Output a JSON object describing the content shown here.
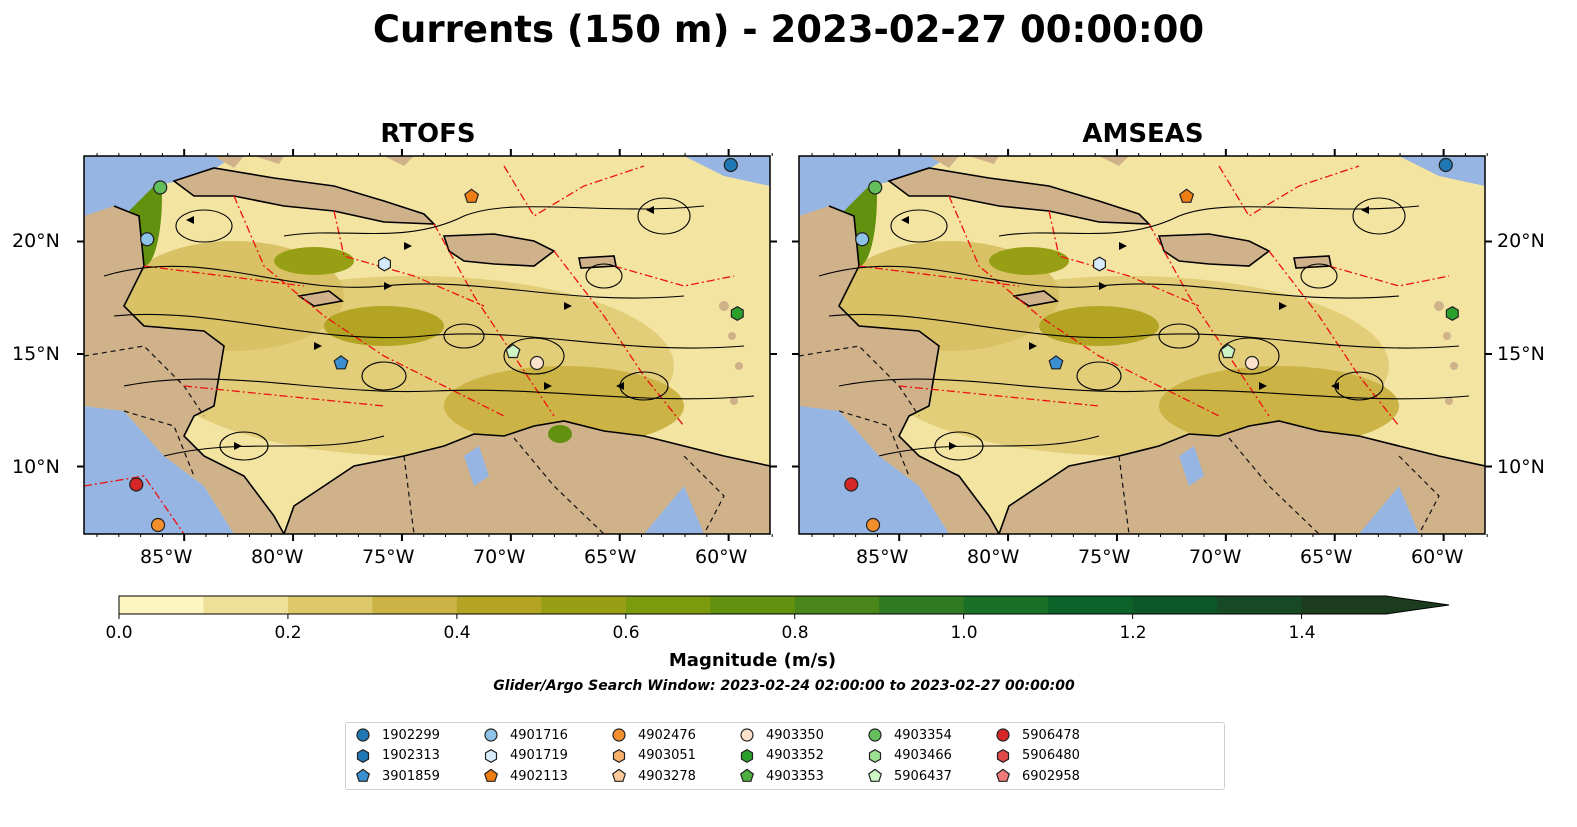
{
  "title": "Currents (150 m) - 2023-02-27 00:00:00",
  "panels": [
    {
      "title": "RTOFS"
    },
    {
      "title": "AMSEAS"
    }
  ],
  "axes": {
    "lon_labels": [
      "85°W",
      "80°W",
      "75°W",
      "70°W",
      "65°W",
      "60°W"
    ],
    "lat_labels": [
      "20°N",
      "15°N",
      "10°N"
    ],
    "lon_range": [
      -89.6,
      -58.1
    ],
    "lat_range": [
      7.0,
      23.8
    ]
  },
  "colorbar": {
    "label": "Magnitude (m/s)",
    "ticks": [
      "0.0",
      "0.2",
      "0.4",
      "0.6",
      "0.8",
      "1.0",
      "1.2",
      "1.4"
    ],
    "range": [
      0.0,
      1.5
    ],
    "extend": "max",
    "colors": [
      "#fef6c0",
      "#efe098",
      "#ddc86a",
      "#cbb346",
      "#b3a523",
      "#97a015",
      "#7c9a0e",
      "#62910f",
      "#4a8619",
      "#2f7a22",
      "#197026",
      "#0b6329",
      "#0c5628",
      "#174a24",
      "#1b3d1e"
    ]
  },
  "search_window": "Glider/Argo Search Window: 2023-02-24 02:00:00 to 2023-02-27 00:00:00",
  "legend": [
    {
      "id": "1902299",
      "marker": "circle",
      "color": "#1f77b4"
    },
    {
      "id": "1902313",
      "marker": "hexagon",
      "color": "#1f77b4"
    },
    {
      "id": "3901859",
      "marker": "pentagon",
      "color": "#3b8fd0"
    },
    {
      "id": "4901716",
      "marker": "circle",
      "color": "#8ec3e8"
    },
    {
      "id": "4901719",
      "marker": "hexagon",
      "color": "#d6ecfa"
    },
    {
      "id": "4902113",
      "marker": "pentagon",
      "color": "#ee7d14"
    },
    {
      "id": "4902476",
      "marker": "circle",
      "color": "#f28e2c"
    },
    {
      "id": "4903051",
      "marker": "hexagon",
      "color": "#f9b26b"
    },
    {
      "id": "4903278",
      "marker": "pentagon",
      "color": "#fbc99a"
    },
    {
      "id": "4903350",
      "marker": "circle",
      "color": "#fde2cc"
    },
    {
      "id": "4903352",
      "marker": "hexagon",
      "color": "#2ca02c"
    },
    {
      "id": "4903353",
      "marker": "pentagon",
      "color": "#4caf3f"
    },
    {
      "id": "4903354",
      "marker": "circle",
      "color": "#63bf5c"
    },
    {
      "id": "4903466",
      "marker": "hexagon",
      "color": "#9ee093"
    },
    {
      "id": "5906437",
      "marker": "pentagon",
      "color": "#cdf5c6"
    },
    {
      "id": "5906478",
      "marker": "circle",
      "color": "#d62728"
    },
    {
      "id": "5906480",
      "marker": "hexagon",
      "color": "#e04a4a"
    },
    {
      "id": "6902958",
      "marker": "pentagon",
      "color": "#f07b7b"
    }
  ],
  "platform_positions": [
    {
      "id": "1902299",
      "lon": -59.9,
      "lat": 23.4
    },
    {
      "id": "4901716",
      "lon": -86.7,
      "lat": 20.1
    },
    {
      "id": "4903354",
      "lon": -86.1,
      "lat": 22.4
    },
    {
      "id": "4901719",
      "lon": -75.8,
      "lat": 19.0
    },
    {
      "id": "4902113",
      "lon": -71.8,
      "lat": 22.0
    },
    {
      "id": "4903352",
      "lon": -59.6,
      "lat": 16.8
    },
    {
      "id": "3901859",
      "lon": -77.8,
      "lat": 14.6
    },
    {
      "id": "5906437",
      "lon": -69.9,
      "lat": 15.1
    },
    {
      "id": "4903350",
      "lon": -68.8,
      "lat": 14.6
    },
    {
      "id": "5906478",
      "lon": -87.2,
      "lat": 9.2
    },
    {
      "id": "4902476",
      "lon": -86.2,
      "lat": 7.4
    }
  ]
}
